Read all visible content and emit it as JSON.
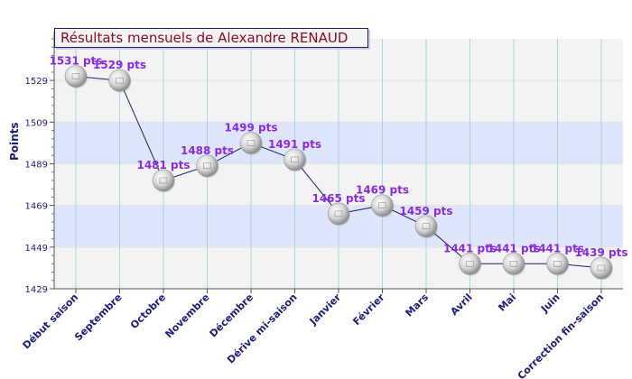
{
  "chart_data": {
    "type": "line",
    "title": "Résultats mensuels de Alexandre RENAUD",
    "ylabel": "Points",
    "xlabel": "",
    "ylim": [
      1429,
      1549
    ],
    "yticks": [
      1429,
      1449,
      1469,
      1489,
      1509,
      1529
    ],
    "grid": true,
    "legend": "none",
    "categories": [
      "Début saison",
      "Septembre",
      "Octobre",
      "Novembre",
      "Décembre",
      "Dérive mi-saison",
      "Janvier",
      "Février",
      "Mars",
      "Avril",
      "Mai",
      "Juin",
      "Correction fin-saison"
    ],
    "series": [
      {
        "values": [
          1531,
          1529,
          1481,
          1488,
          1499,
          1491,
          1465,
          1469,
          1459,
          1441,
          1441,
          1441,
          1439
        ],
        "labels": [
          "1531 pts",
          "1529 pts",
          "1481 pts",
          "1488 pts",
          "1499 pts",
          "1491 pts",
          "1465 pts",
          "1469 pts",
          "1459 pts",
          "1441 pts",
          "1441 pts",
          "1441 pts",
          "1439 pts"
        ]
      }
    ],
    "colors": {
      "line": "#1c1c7a",
      "data_label": "#8a2be2",
      "axis_text": "#1c1c7a",
      "title_text": "#8b0d22",
      "band_light": "#f3f3f3",
      "band_blue": "#dde6fb",
      "vertical_grid": "#a9d3e6"
    }
  }
}
